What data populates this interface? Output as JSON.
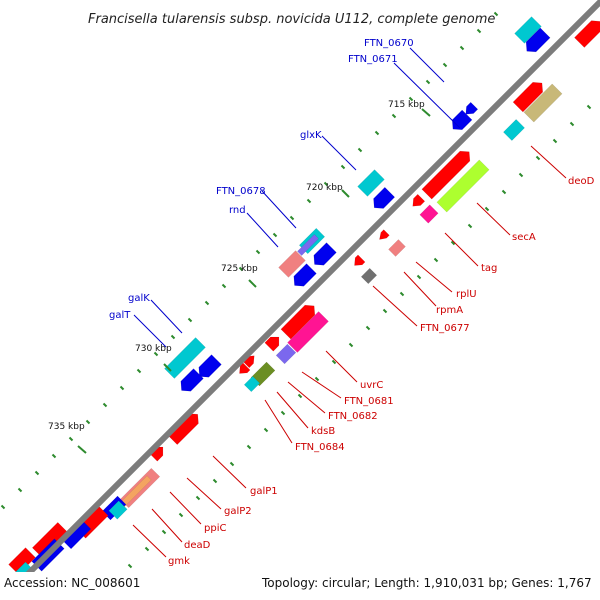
{
  "title": "Francisella tularensis subsp. novicida U112, complete genome",
  "footer": {
    "accession": "Accession: NC_008601",
    "summary": "Topology: circular; Length: 1,910,031 bp; Genes: 1,767"
  },
  "colors": {
    "backbone": "#808080",
    "tick": "#2e8b2e",
    "label_blue": "#0000cc",
    "label_red": "#cc0000",
    "gene_red": "#ff0000",
    "gene_blue": "#0000ee",
    "gene_cyan": "#00c8d0",
    "gene_magenta": "#ff1493",
    "gene_lime": "#adff2f",
    "gene_tan": "#c8b878",
    "gene_pink": "#f08080",
    "gene_olive": "#6b8e23",
    "gene_violet": "#7b68ee",
    "gene_gray": "#707070"
  },
  "kbp_markers": [
    {
      "label": "715 kbp"
    },
    {
      "label": "720 kbp"
    },
    {
      "label": "725 kbp"
    },
    {
      "label": "730 kbp"
    },
    {
      "label": "735 kbp"
    }
  ],
  "gene_labels_left": [
    {
      "name": "FTN_0670"
    },
    {
      "name": "FTN_0671"
    },
    {
      "name": "glxK"
    },
    {
      "name": "FTN_0678"
    },
    {
      "name": "rnd"
    },
    {
      "name": "galK"
    },
    {
      "name": "galT"
    }
  ],
  "gene_labels_right": [
    {
      "name": "deoD"
    },
    {
      "name": "secA"
    },
    {
      "name": "tag"
    },
    {
      "name": "rplU"
    },
    {
      "name": "rpmA"
    },
    {
      "name": "FTN_0677"
    },
    {
      "name": "uvrC"
    },
    {
      "name": "FTN_0681"
    },
    {
      "name": "FTN_0682"
    },
    {
      "name": "kdsB"
    },
    {
      "name": "FTN_0684"
    },
    {
      "name": "galP1"
    },
    {
      "name": "galP2"
    },
    {
      "name": "ppiC"
    },
    {
      "name": "deaD"
    },
    {
      "name": "gmk"
    }
  ]
}
